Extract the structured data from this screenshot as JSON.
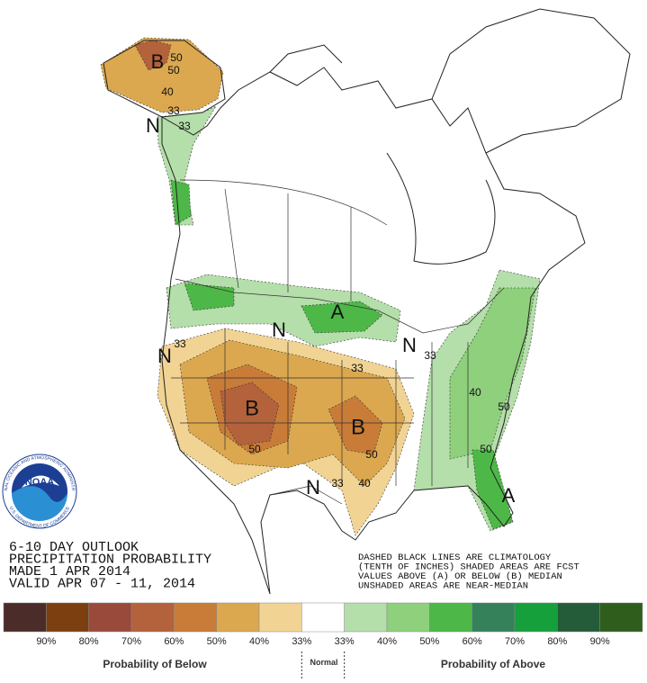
{
  "header": {
    "lines": [
      "6-10 DAY OUTLOOK",
      "PRECIPITATION PROBABILITY",
      "MADE  1 APR 2014",
      "VALID  APR 07 - 11, 2014"
    ]
  },
  "notes": {
    "lines": [
      "DASHED BLACK LINES ARE CLIMATOLOGY",
      "(TENTH OF INCHES) SHADED AREAS ARE FCST",
      "VALUES ABOVE (A) OR BELOW (B) MEDIAN",
      "UNSHADED AREAS ARE NEAR-MEDIAN"
    ]
  },
  "logo": {
    "text": "NOAA",
    "ring_top": "NATIONAL OCEANIC AND ATMOSPHERIC ADMINISTRATION",
    "ring_bottom": "U.S. DEPARTMENT OF COMMERCE"
  },
  "map": {
    "labels": [
      "B",
      "50",
      "50",
      "40",
      "33",
      "N",
      "33",
      "A",
      "N",
      "N",
      "33",
      "N",
      "33",
      "33",
      "B",
      "B",
      "50",
      "50",
      "33",
      "40",
      "N",
      "40",
      "50",
      "50",
      "A"
    ]
  },
  "legend": {
    "colors": [
      "#4b2c29",
      "#7c3f10",
      "#9a4a3a",
      "#b3623c",
      "#c97c38",
      "#dba84f",
      "#f1d394",
      "#ffffff",
      "#b4deaa",
      "#8ed07c",
      "#4db847",
      "#35815a",
      "#15a03c",
      "#245b38",
      "#2f5e1c"
    ],
    "labels": [
      "90%",
      "80%",
      "70%",
      "60%",
      "50%",
      "40%",
      "33%",
      "33%",
      "40%",
      "50%",
      "60%",
      "70%",
      "80%",
      "90%"
    ],
    "below_title": "Probability of Below",
    "normal": "Normal",
    "above_title": "Probability of Above"
  }
}
